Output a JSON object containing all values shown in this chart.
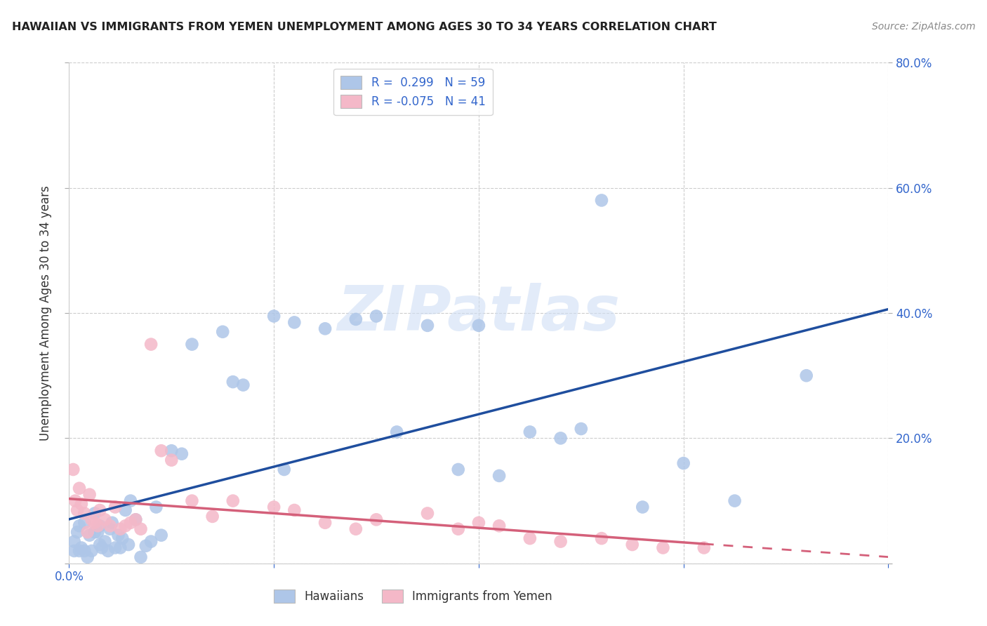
{
  "title": "HAWAIIAN VS IMMIGRANTS FROM YEMEN UNEMPLOYMENT AMONG AGES 30 TO 34 YEARS CORRELATION CHART",
  "source": "Source: ZipAtlas.com",
  "ylabel": "Unemployment Among Ages 30 to 34 years",
  "xlim": [
    0.0,
    0.8
  ],
  "ylim": [
    0.0,
    0.8
  ],
  "xticks": [
    0.0,
    0.2,
    0.4,
    0.6,
    0.8
  ],
  "yticks": [
    0.0,
    0.2,
    0.4,
    0.6,
    0.8
  ],
  "xticklabels": [
    "0.0%",
    "",
    "",
    "",
    ""
  ],
  "yticklabels_right": [
    "",
    "20.0%",
    "40.0%",
    "60.0%",
    "80.0%"
  ],
  "hawaiian_R": 0.299,
  "hawaiian_N": 59,
  "yemen_R": -0.075,
  "yemen_N": 41,
  "hawaiian_color": "#aec6e8",
  "hawaiian_line_color": "#1f4e9e",
  "yemen_color": "#f4b8c8",
  "yemen_line_color": "#d4607a",
  "watermark_text": "ZIPatlas",
  "legend_labels": [
    "Hawaiians",
    "Immigrants from Yemen"
  ],
  "hawaiian_scatter_x": [
    0.005,
    0.005,
    0.008,
    0.01,
    0.01,
    0.012,
    0.015,
    0.015,
    0.018,
    0.02,
    0.022,
    0.025,
    0.025,
    0.028,
    0.03,
    0.03,
    0.032,
    0.035,
    0.038,
    0.04,
    0.042,
    0.045,
    0.048,
    0.05,
    0.052,
    0.055,
    0.058,
    0.06,
    0.065,
    0.07,
    0.075,
    0.08,
    0.085,
    0.09,
    0.1,
    0.11,
    0.12,
    0.15,
    0.16,
    0.17,
    0.2,
    0.21,
    0.22,
    0.25,
    0.28,
    0.3,
    0.32,
    0.35,
    0.38,
    0.4,
    0.42,
    0.45,
    0.48,
    0.5,
    0.52,
    0.56,
    0.6,
    0.65,
    0.72
  ],
  "hawaiian_scatter_y": [
    0.02,
    0.035,
    0.05,
    0.02,
    0.06,
    0.025,
    0.02,
    0.065,
    0.01,
    0.045,
    0.02,
    0.05,
    0.08,
    0.05,
    0.03,
    0.06,
    0.025,
    0.035,
    0.02,
    0.055,
    0.065,
    0.025,
    0.045,
    0.025,
    0.04,
    0.085,
    0.03,
    0.1,
    0.07,
    0.01,
    0.028,
    0.035,
    0.09,
    0.045,
    0.18,
    0.175,
    0.35,
    0.37,
    0.29,
    0.285,
    0.395,
    0.15,
    0.385,
    0.375,
    0.39,
    0.395,
    0.21,
    0.38,
    0.15,
    0.38,
    0.14,
    0.21,
    0.2,
    0.215,
    0.58,
    0.09,
    0.16,
    0.1,
    0.3
  ],
  "yemen_scatter_x": [
    0.004,
    0.006,
    0.008,
    0.01,
    0.012,
    0.015,
    0.018,
    0.02,
    0.022,
    0.025,
    0.028,
    0.03,
    0.035,
    0.04,
    0.045,
    0.05,
    0.055,
    0.06,
    0.065,
    0.07,
    0.08,
    0.09,
    0.1,
    0.12,
    0.14,
    0.16,
    0.2,
    0.22,
    0.25,
    0.28,
    0.3,
    0.35,
    0.38,
    0.4,
    0.42,
    0.45,
    0.48,
    0.52,
    0.55,
    0.58,
    0.62
  ],
  "yemen_scatter_y": [
    0.15,
    0.1,
    0.085,
    0.12,
    0.095,
    0.08,
    0.05,
    0.11,
    0.07,
    0.065,
    0.06,
    0.085,
    0.07,
    0.06,
    0.09,
    0.055,
    0.06,
    0.065,
    0.07,
    0.055,
    0.35,
    0.18,
    0.165,
    0.1,
    0.075,
    0.1,
    0.09,
    0.085,
    0.065,
    0.055,
    0.07,
    0.08,
    0.055,
    0.065,
    0.06,
    0.04,
    0.035,
    0.04,
    0.03,
    0.025,
    0.025
  ]
}
